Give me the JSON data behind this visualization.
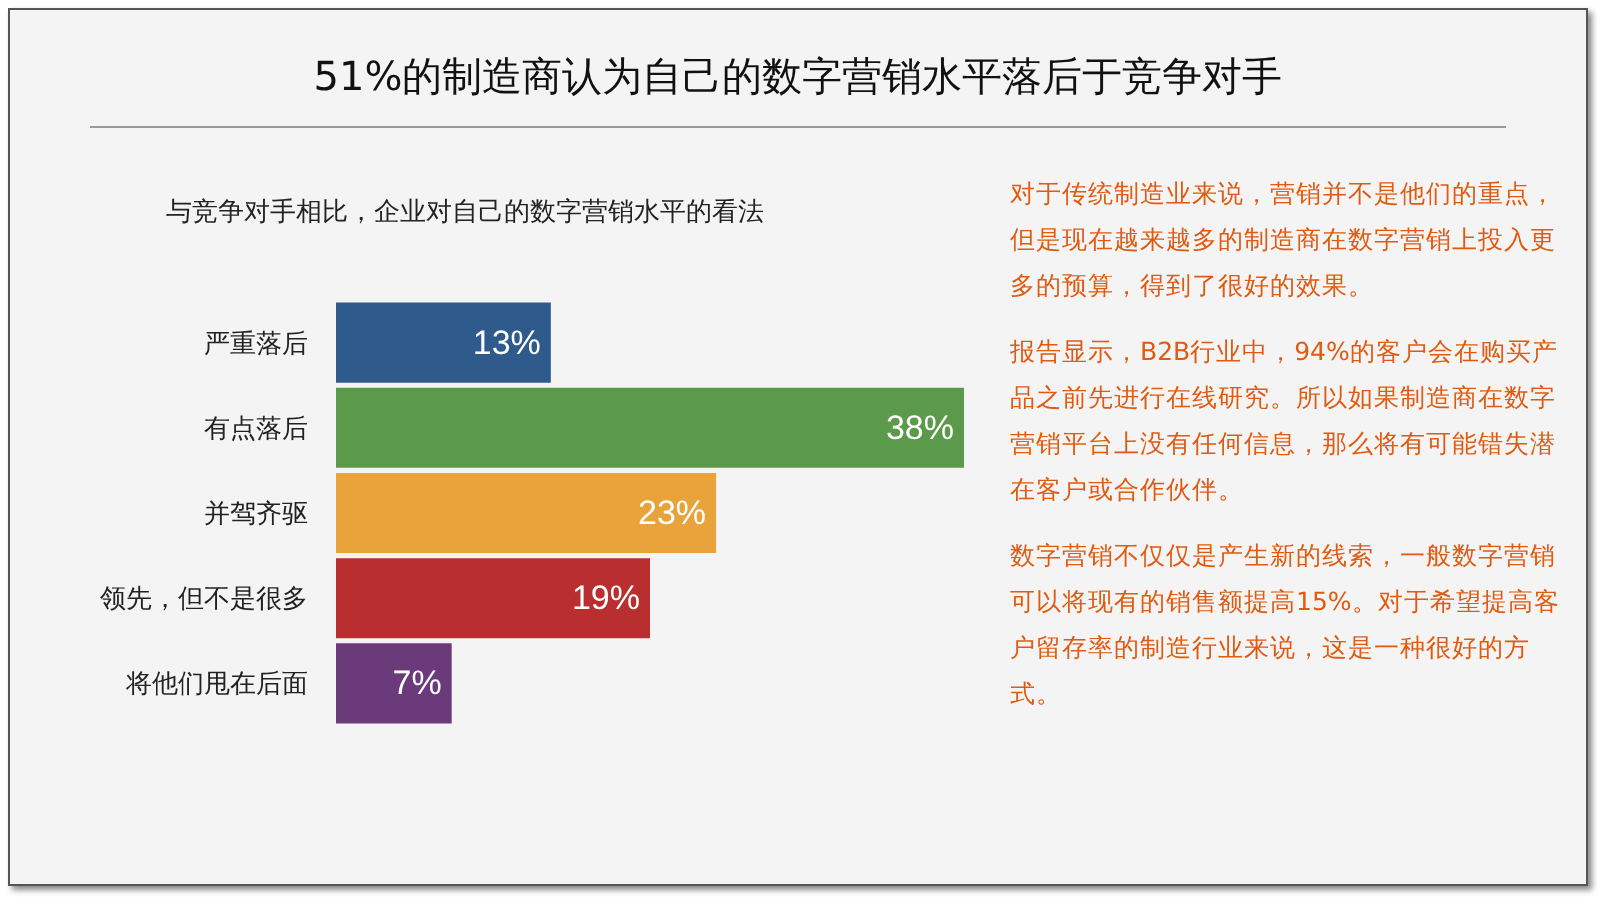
{
  "chart_data": {
    "type": "bar",
    "orientation": "horizontal",
    "title": "51%的制造商认为自己的数字营销水平落后于竞争对手",
    "subtitle": "与竞争对手相比，企业对自己的数字营销水平的看法",
    "categories": [
      "严重落后",
      "有点落后",
      "并驾齐驱",
      "领先，但不是很多",
      "将他们甩在后面"
    ],
    "values": [
      13,
      38,
      23,
      19,
      7
    ],
    "colors": [
      "#2e5a8c",
      "#5b9a4a",
      "#e8a33a",
      "#b92e2f",
      "#6b3a7a"
    ],
    "value_labels": [
      "13%",
      "38%",
      "23%",
      "19%",
      "7%"
    ],
    "tick_labels": "y",
    "grid": false,
    "annotations": [
      "对于传统制造业来说，营销并不是他们的重点，但是现在越来越多的制造商在数字营销上投入更多的预算，得到了很好的效果。",
      "报告显示，B2B行业中，94%的客户会在购买产品之前先进行在线研究。所以如果制造商在数字营销平台上没有任何信息，那么将有可能错失潜在客户或合作伙伴。",
      "数字营销不仅仅是产生新的线索，一般数字营销可以将现有的销售额提高15%。对于希望提高客户留存率的制造行业来说，这是一种很好的方式。"
    ]
  }
}
